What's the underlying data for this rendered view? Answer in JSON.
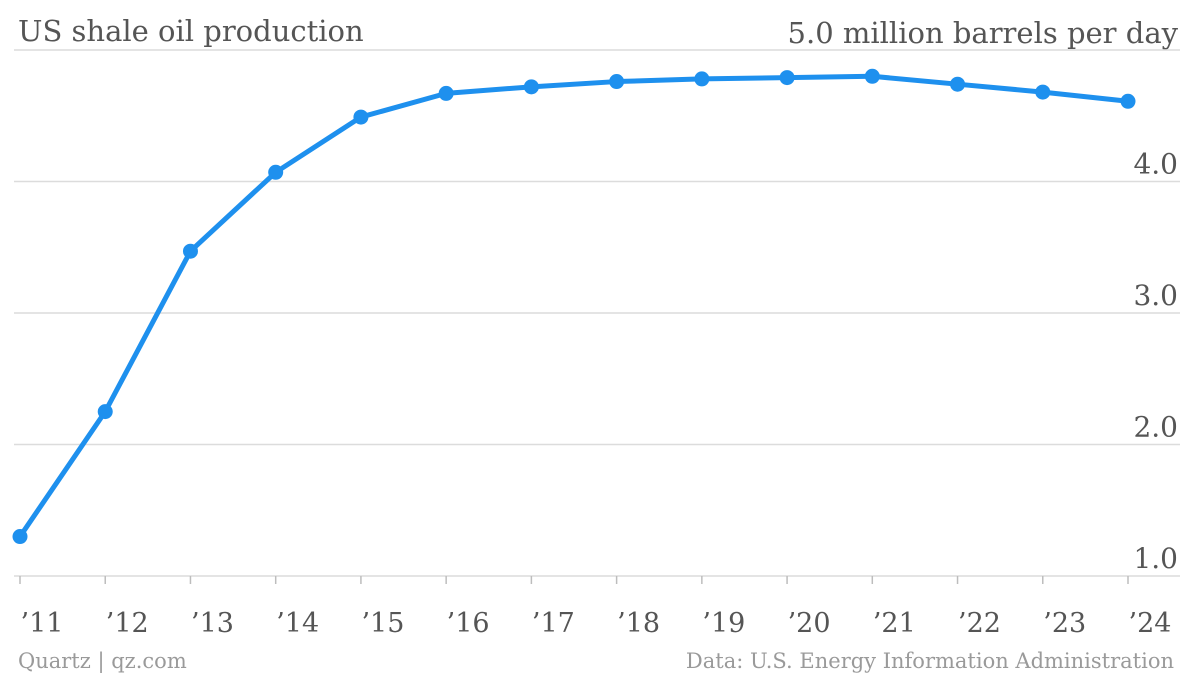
{
  "chart_data": {
    "type": "line",
    "title": "US shale oil production",
    "unit_label": "5.0 million barrels per day",
    "xlabel": "",
    "ylabel": "",
    "ylim": [
      1.0,
      5.0
    ],
    "y_ticks": [
      "1.0",
      "2.0",
      "3.0",
      "4.0"
    ],
    "grid": true,
    "categories": [
      "’11",
      "’12",
      "’13",
      "’14",
      "’15",
      "’16",
      "’17",
      "’18",
      "’19",
      "’20",
      "’21",
      "’22",
      "’23",
      "’24"
    ],
    "series": [
      {
        "color": "#1e90ee",
        "values": [
          1.3,
          2.25,
          3.47,
          4.07,
          4.49,
          4.67,
          4.72,
          4.76,
          4.78,
          4.79,
          4.8,
          4.74,
          4.68,
          4.61
        ]
      }
    ]
  },
  "footer": {
    "source_left": "Quartz | qz.com",
    "source_right": "Data: U.S. Energy Information Administration"
  }
}
